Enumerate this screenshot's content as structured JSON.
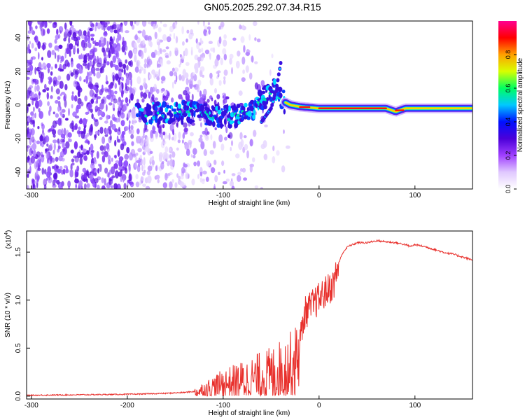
{
  "figure_title": "GN05.2025.292.07.34.R15",
  "chart_data": [
    {
      "type": "heatmap",
      "xlabel": "Height of straight line (km)",
      "ylabel": "Frequency (Hz)",
      "xlim": [
        -305,
        160
      ],
      "ylim": [
        -50,
        50
      ],
      "x_ticks": [
        -300,
        -200,
        -100,
        0,
        100
      ],
      "y_ticks": [
        -40,
        -20,
        0,
        20,
        40
      ],
      "colorbar": {
        "label": "Normalized spectral amplitude",
        "range": [
          0,
          1
        ],
        "ticks": [
          "0.0",
          "0.2",
          "0.4",
          "0.6",
          "0.8"
        ],
        "colors": [
          "#ffffff",
          "#e0c8ff",
          "#a040ff",
          "#4b00d9",
          "#0010ff",
          "#00c8ff",
          "#00ff60",
          "#d8ff00",
          "#ffa000",
          "#ff0000",
          "#ff0090"
        ]
      },
      "ridge": {
        "x": [
          -190,
          -160,
          -130,
          -110,
          -90,
          -70,
          -55,
          -45,
          -40,
          -30,
          -20,
          0,
          20,
          70,
          80,
          90,
          100,
          130,
          160
        ],
        "y": [
          -5,
          -5,
          -4,
          -6,
          -7,
          -3,
          5,
          10,
          3,
          0,
          -1,
          -2,
          -2,
          -2,
          -4,
          -2,
          -2,
          -2,
          -2
        ]
      },
      "branch": {
        "x": [
          -60,
          -50,
          -45,
          -40
        ],
        "y": [
          -10,
          -2,
          8,
          25
        ]
      }
    },
    {
      "type": "line",
      "xlabel": "Height of straight line (km)",
      "ylabel": "SNR (10 * v/v)",
      "y_multiplier": "(x10",
      "y_multiplier_exp": "4",
      "xlim": [
        -305,
        160
      ],
      "ylim": [
        -0.03,
        1.72
      ],
      "x_ticks": [
        -300,
        -200,
        -100,
        0,
        100
      ],
      "y_ticks": [
        "0.0",
        "0.5",
        "1.0",
        "1.5"
      ],
      "series": [
        {
          "color": "#e8302c",
          "x": [
            -305,
            -250,
            -200,
            -160,
            -140,
            -130,
            -120,
            -110,
            -100,
            -90,
            -80,
            -70,
            -60,
            -50,
            -40,
            -30,
            -25,
            -20,
            -15,
            -10,
            -5,
            0,
            5,
            10,
            15,
            20,
            25,
            30,
            40,
            50,
            60,
            70,
            80,
            90,
            95,
            100,
            110,
            120,
            130,
            140,
            150,
            160
          ],
          "y": [
            0.01,
            0.015,
            0.02,
            0.03,
            0.04,
            0.05,
            0.08,
            0.12,
            0.16,
            0.18,
            0.2,
            0.22,
            0.25,
            0.27,
            0.32,
            0.38,
            0.42,
            0.6,
            0.9,
            0.95,
            1.0,
            1.05,
            1.1,
            1.15,
            1.2,
            1.38,
            1.5,
            1.56,
            1.6,
            1.6,
            1.62,
            1.61,
            1.6,
            1.58,
            1.56,
            1.58,
            1.56,
            1.53,
            1.5,
            1.48,
            1.45,
            1.42
          ]
        }
      ]
    }
  ]
}
